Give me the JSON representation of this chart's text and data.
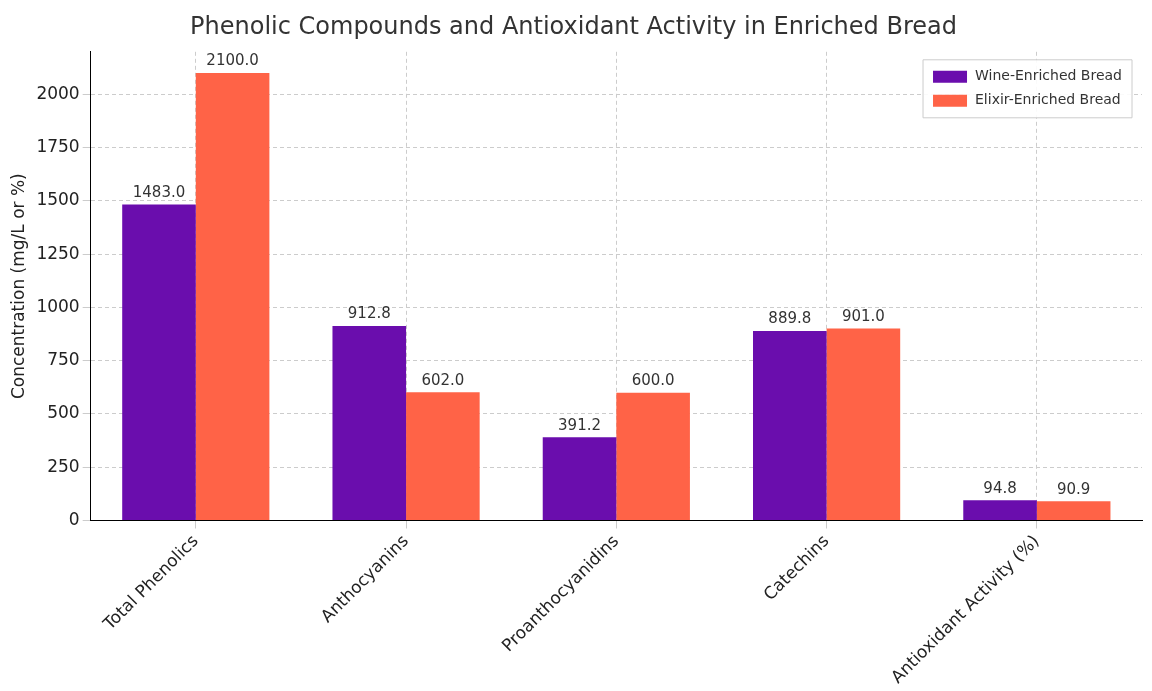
{
  "chart_data": {
    "type": "bar",
    "title": "Phenolic Compounds and Antioxidant Activity in Enriched Bread",
    "ylabel": "Concentration (mg/L or %)",
    "categories": [
      "Total Phenolics",
      "Anthocyanins",
      "Proanthocyanidins",
      "Catechins",
      "Antioxidant Activity (%)"
    ],
    "series": [
      {
        "name": "Wine-Enriched Bread",
        "color": "#6a0dad",
        "values": [
          1483,
          912.8,
          391.2,
          889.8,
          94.8
        ],
        "value_labels": [
          "1483.0",
          "912.8",
          "391.2",
          "889.8",
          "94.8"
        ]
      },
      {
        "name": "Elixir-Enriched Bread",
        "color": "#ff6347",
        "values": [
          2100,
          602,
          600,
          901,
          90.9
        ],
        "value_labels": [
          "2100.0",
          "602.0",
          "600.0",
          "901.0",
          "90.9"
        ]
      }
    ],
    "ylim": [
      0,
      2200
    ],
    "yticks": [
      0,
      250,
      500,
      750,
      1000,
      1250,
      1500,
      1750,
      2000
    ],
    "grid": true,
    "legend": "top right"
  }
}
